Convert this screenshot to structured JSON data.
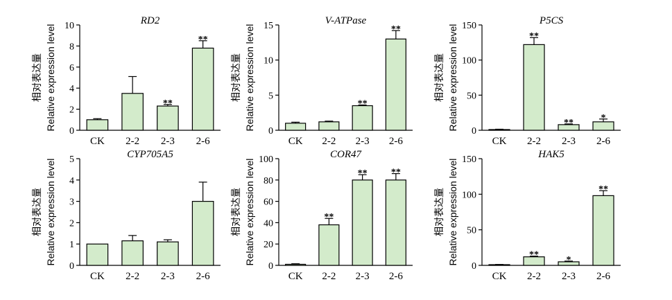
{
  "figure": {
    "ylabel_cn": "相对表达量",
    "ylabel_en": "Relative expression level",
    "bar_color": "#d3ebcb",
    "edge_color": "#000000"
  },
  "chart_data": [
    {
      "type": "bar",
      "title": "RD2",
      "categories": [
        "CK",
        "2-2",
        "2-3",
        "2-6"
      ],
      "values": [
        1.0,
        3.5,
        2.3,
        7.8
      ],
      "errors": [
        0.1,
        1.6,
        0.15,
        0.7
      ],
      "significance": [
        "",
        "",
        "**",
        "**"
      ],
      "ylim": [
        0,
        10
      ],
      "yticks": [
        0,
        2,
        4,
        6,
        8,
        10
      ]
    },
    {
      "type": "bar",
      "title": "V-ATPase",
      "categories": [
        "CK",
        "2-2",
        "2-3",
        "2-6"
      ],
      "values": [
        1.0,
        1.2,
        3.5,
        13.0
      ],
      "errors": [
        0.15,
        0.1,
        0.1,
        1.2
      ],
      "significance": [
        "",
        "",
        "**",
        "**"
      ],
      "ylim": [
        0,
        15
      ],
      "yticks": [
        0,
        5,
        10,
        15
      ]
    },
    {
      "type": "bar",
      "title": "P5CS",
      "categories": [
        "CK",
        "2-2",
        "2-3",
        "2-6"
      ],
      "values": [
        1.0,
        122,
        8,
        12
      ],
      "errors": [
        0.5,
        10,
        1,
        4
      ],
      "significance": [
        "",
        "**",
        "**",
        "*"
      ],
      "ylim": [
        0,
        150
      ],
      "yticks": [
        0,
        50,
        100,
        150
      ]
    },
    {
      "type": "bar",
      "title": "CYP705A5",
      "categories": [
        "CK",
        "2-2",
        "2-3",
        "2-6"
      ],
      "values": [
        1.0,
        1.15,
        1.1,
        3.0
      ],
      "errors": [
        0.0,
        0.25,
        0.1,
        0.9
      ],
      "significance": [
        "",
        "",
        "",
        ""
      ],
      "ylim": [
        0,
        5
      ],
      "yticks": [
        0,
        1,
        2,
        3,
        4,
        5
      ]
    },
    {
      "type": "bar",
      "title": "COR47",
      "categories": [
        "CK",
        "2-2",
        "2-3",
        "2-6"
      ],
      "values": [
        1.0,
        38,
        80,
        80
      ],
      "errors": [
        0.5,
        6,
        5,
        6
      ],
      "significance": [
        "",
        "**",
        "**",
        "**"
      ],
      "ylim": [
        0,
        100
      ],
      "yticks": [
        0,
        20,
        40,
        60,
        80,
        100
      ]
    },
    {
      "type": "bar",
      "title": "HAK5",
      "categories": [
        "CK",
        "2-2",
        "2-3",
        "2-6"
      ],
      "values": [
        1.0,
        12,
        5,
        98
      ],
      "errors": [
        0.3,
        1,
        1,
        7
      ],
      "significance": [
        "",
        "**",
        "*",
        "**"
      ],
      "ylim": [
        0,
        150
      ],
      "yticks": [
        0,
        50,
        100,
        150
      ]
    }
  ]
}
